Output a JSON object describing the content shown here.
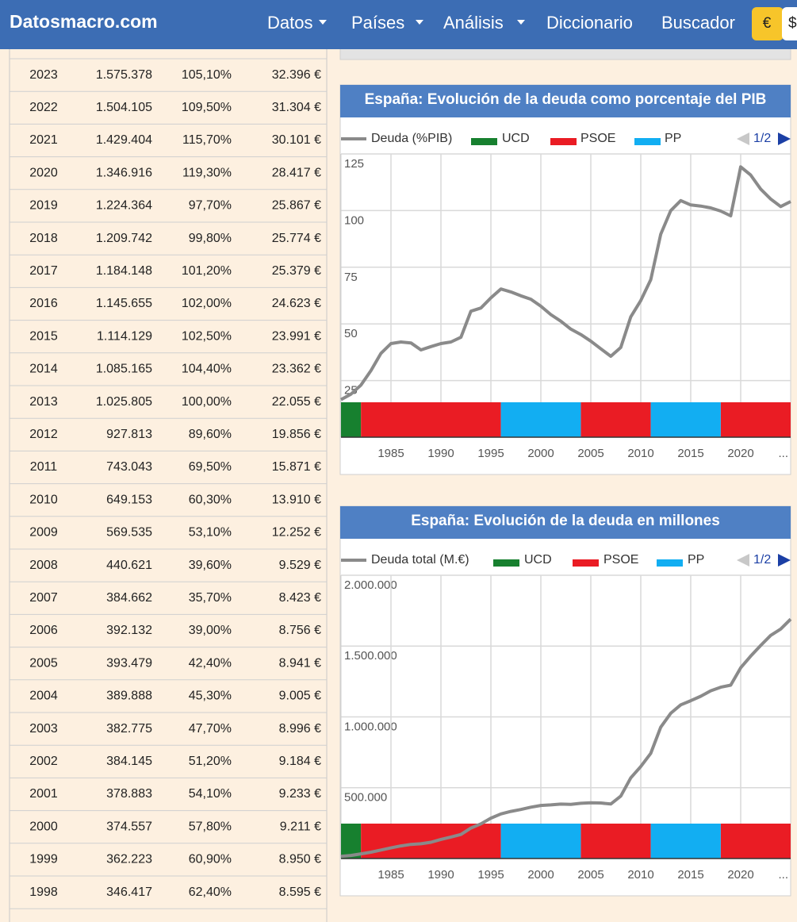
{
  "nav": {
    "brand": "Datosmacro.com",
    "menu": [
      "Datos",
      "Países",
      "Análisis",
      "Diccionario",
      "Buscador"
    ],
    "currency": [
      "€",
      "$"
    ]
  },
  "table": {
    "rows": [
      [
        "2023",
        "1.575.378",
        "105,10%",
        "32.396 €"
      ],
      [
        "2022",
        "1.504.105",
        "109,50%",
        "31.304 €"
      ],
      [
        "2021",
        "1.429.404",
        "115,70%",
        "30.101 €"
      ],
      [
        "2020",
        "1.346.916",
        "119,30%",
        "28.417 €"
      ],
      [
        "2019",
        "1.224.364",
        "97,70%",
        "25.867 €"
      ],
      [
        "2018",
        "1.209.742",
        "99,80%",
        "25.774 €"
      ],
      [
        "2017",
        "1.184.148",
        "101,20%",
        "25.379 €"
      ],
      [
        "2016",
        "1.145.655",
        "102,00%",
        "24.623 €"
      ],
      [
        "2015",
        "1.114.129",
        "102,50%",
        "23.991 €"
      ],
      [
        "2014",
        "1.085.165",
        "104,40%",
        "23.362 €"
      ],
      [
        "2013",
        "1.025.805",
        "100,00%",
        "22.055 €"
      ],
      [
        "2012",
        "927.813",
        "89,60%",
        "19.856 €"
      ],
      [
        "2011",
        "743.043",
        "69,50%",
        "15.871 €"
      ],
      [
        "2010",
        "649.153",
        "60,30%",
        "13.910 €"
      ],
      [
        "2009",
        "569.535",
        "53,10%",
        "12.252 €"
      ],
      [
        "2008",
        "440.621",
        "39,60%",
        "9.529 €"
      ],
      [
        "2007",
        "384.662",
        "35,70%",
        "8.423 €"
      ],
      [
        "2006",
        "392.132",
        "39,00%",
        "8.756 €"
      ],
      [
        "2005",
        "393.479",
        "42,40%",
        "8.941 €"
      ],
      [
        "2004",
        "389.888",
        "45,30%",
        "9.005 €"
      ],
      [
        "2003",
        "382.775",
        "47,70%",
        "8.996 €"
      ],
      [
        "2002",
        "384.145",
        "51,20%",
        "9.184 €"
      ],
      [
        "2001",
        "378.883",
        "54,10%",
        "9.233 €"
      ],
      [
        "2000",
        "374.557",
        "57,80%",
        "9.211 €"
      ],
      [
        "1999",
        "362.223",
        "60,90%",
        "8.950 €"
      ],
      [
        "1998",
        "346.417",
        "62,40%",
        "8.595 €"
      ]
    ]
  },
  "chart_data": [
    {
      "type": "line",
      "title": "España: Evolución de la deuda como porcentaje del PIB",
      "pager": "1/2",
      "x": [
        1980,
        1981,
        1982,
        1983,
        1984,
        1985,
        1986,
        1987,
        1988,
        1989,
        1990,
        1991,
        1992,
        1993,
        1994,
        1995,
        1996,
        1997,
        1998,
        1999,
        2000,
        2001,
        2002,
        2003,
        2004,
        2005,
        2006,
        2007,
        2008,
        2009,
        2010,
        2011,
        2012,
        2013,
        2014,
        2015,
        2016,
        2017,
        2018,
        2019,
        2020,
        2021,
        2022,
        2023,
        2024,
        2025
      ],
      "series": [
        {
          "name": "Deuda (%PIB)",
          "color": "#8a8a8a",
          "values": [
            16.6,
            19,
            23,
            29.4,
            37,
            41.3,
            42,
            41.6,
            38.5,
            40,
            41.3,
            42,
            44.1,
            55.6,
            57,
            61.5,
            65.4,
            64.1,
            62.4,
            60.9,
            57.8,
            54.1,
            51.2,
            47.7,
            45.3,
            42.4,
            39,
            35.7,
            39.6,
            53.1,
            60.3,
            69.5,
            89.6,
            100,
            104.4,
            102.5,
            102,
            101.2,
            99.8,
            97.7,
            119.3,
            115.7,
            109.5,
            105.1,
            101.8,
            104
          ]
        }
      ],
      "parties": [
        {
          "name": "UCD",
          "color": "#17802f",
          "periods": [
            [
              1980,
              1982
            ]
          ]
        },
        {
          "name": "PSOE",
          "color": "#ea1c24",
          "periods": [
            [
              1982,
              1996
            ],
            [
              2004,
              2011
            ],
            [
              2018,
              2025
            ]
          ]
        },
        {
          "name": "PP",
          "color": "#12aef2",
          "periods": [
            [
              1996,
              2004
            ],
            [
              2011,
              2018
            ]
          ]
        }
      ],
      "xlim": [
        1980,
        2025
      ],
      "xticks": [
        1985,
        1990,
        1995,
        2000,
        2005,
        2010,
        2015,
        2020,
        {
          "value": 2025,
          "label": "..."
        }
      ],
      "ylim": [
        0,
        125
      ],
      "yticks": [
        25,
        50,
        75,
        100,
        125
      ],
      "grid": true
    },
    {
      "type": "line",
      "title": "España: Evolución de la deuda en millones",
      "pager": "1/2",
      "x": [
        1980,
        1981,
        1982,
        1983,
        1984,
        1985,
        1986,
        1987,
        1988,
        1989,
        1990,
        1991,
        1992,
        1993,
        1994,
        1995,
        1996,
        1997,
        1998,
        1999,
        2000,
        2001,
        2002,
        2003,
        2004,
        2005,
        2006,
        2007,
        2008,
        2009,
        2010,
        2011,
        2012,
        2013,
        2014,
        2015,
        2016,
        2017,
        2018,
        2019,
        2020,
        2021,
        2022,
        2023,
        2024,
        2025
      ],
      "series": [
        {
          "name": "Deuda total (M.€)",
          "color": "#8a8a8a",
          "values": [
            15000,
            22000,
            33000,
            45000,
            60000,
            75000,
            89000,
            100000,
            104000,
            115000,
            135000,
            152000,
            170000,
            215000,
            245000,
            285000,
            315000,
            333000,
            346417,
            362223,
            374557,
            378883,
            384145,
            382775,
            389888,
            393479,
            392132,
            384662,
            440621,
            569535,
            649153,
            743043,
            927813,
            1025805,
            1085165,
            1114129,
            1145655,
            1184148,
            1209742,
            1224364,
            1346916,
            1429404,
            1504105,
            1575378,
            1620000,
            1690000
          ]
        }
      ],
      "parties": [
        {
          "name": "UCD",
          "color": "#17802f",
          "periods": [
            [
              1980,
              1982
            ]
          ]
        },
        {
          "name": "PSOE",
          "color": "#ea1c24",
          "periods": [
            [
              1982,
              1996
            ],
            [
              2004,
              2011
            ],
            [
              2018,
              2025
            ]
          ]
        },
        {
          "name": "PP",
          "color": "#12aef2",
          "periods": [
            [
              1996,
              2004
            ],
            [
              2011,
              2018
            ]
          ]
        }
      ],
      "xlim": [
        1980,
        2025
      ],
      "xticks": [
        1985,
        1990,
        1995,
        2000,
        2005,
        2010,
        2015,
        2020,
        {
          "value": 2025,
          "label": "..."
        }
      ],
      "ylim": [
        0,
        2000000
      ],
      "yticks": [
        {
          "value": 500000,
          "label": "500.000"
        },
        {
          "value": 1000000,
          "label": "1.000.000"
        },
        {
          "value": 1500000,
          "label": "1.500.000"
        },
        {
          "value": 2000000,
          "label": "2.000.000"
        }
      ],
      "grid": true
    }
  ]
}
